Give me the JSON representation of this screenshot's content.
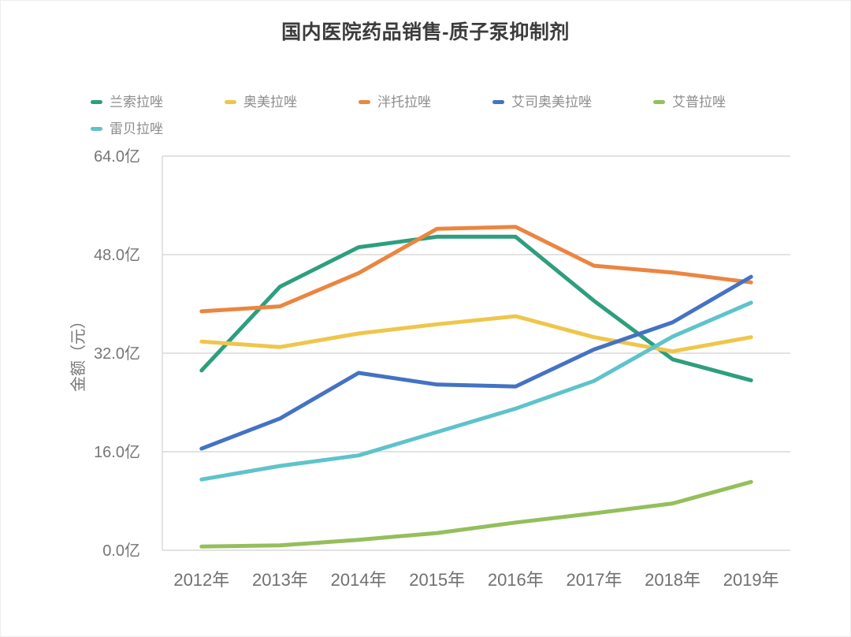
{
  "chart_data": {
    "type": "line",
    "title": "国内医院药品销售-质子泵抑制剂",
    "ylabel": "金额（元）",
    "xlabel": "",
    "unit": "亿",
    "grid": true,
    "legend_position": "top-left",
    "categories": [
      "2012年",
      "2013年",
      "2014年",
      "2015年",
      "2016年",
      "2017年",
      "2018年",
      "2019年"
    ],
    "series": [
      {
        "name": "兰索拉唑",
        "color": "#2E9E7E",
        "values": [
          29.2,
          42.8,
          49.2,
          50.9,
          50.9,
          40.5,
          31.0,
          27.6
        ]
      },
      {
        "name": "奥美拉唑",
        "color": "#EFC64B",
        "values": [
          33.9,
          33.0,
          35.2,
          36.7,
          38.0,
          34.6,
          32.3,
          34.6
        ]
      },
      {
        "name": "泮托拉唑",
        "color": "#EB8540",
        "values": [
          38.8,
          39.6,
          45.0,
          52.2,
          52.5,
          46.2,
          45.1,
          43.5
        ]
      },
      {
        "name": "艾司奥美拉唑",
        "color": "#4472C4",
        "values": [
          16.5,
          21.4,
          28.8,
          26.9,
          26.6,
          32.6,
          37.0,
          44.4
        ]
      },
      {
        "name": "艾普拉唑",
        "color": "#94BF5C",
        "values": [
          0.6,
          0.8,
          1.7,
          2.8,
          4.5,
          6.0,
          7.6,
          11.1
        ]
      },
      {
        "name": "雷贝拉唑",
        "color": "#5EC3CB",
        "values": [
          11.5,
          13.7,
          15.4,
          19.2,
          23.0,
          27.5,
          34.7,
          40.2
        ]
      }
    ],
    "yticks": {
      "values": [
        0,
        16,
        32,
        48,
        64
      ],
      "labels": [
        "0.0亿",
        "16.0亿",
        "32.0亿",
        "48.0亿",
        "64.0亿"
      ]
    },
    "ylim": [
      0,
      64
    ],
    "axis_color": "#d9d9d9"
  }
}
